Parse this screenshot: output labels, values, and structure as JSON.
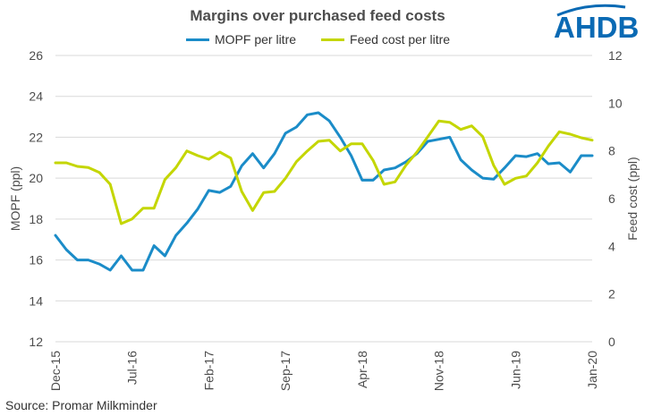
{
  "title": "Margins over purchased feed costs",
  "source": "Source:  Promar Milkminder",
  "logo": {
    "text": "AHDB",
    "color": "#0a6ab4"
  },
  "chart_data": {
    "type": "line",
    "x": [
      "2015-12",
      "2016-01",
      "2016-02",
      "2016-03",
      "2016-04",
      "2016-05",
      "2016-06",
      "2016-07",
      "2016-08",
      "2016-09",
      "2016-10",
      "2016-11",
      "2016-12",
      "2017-01",
      "2017-02",
      "2017-03",
      "2017-04",
      "2017-05",
      "2017-06",
      "2017-07",
      "2017-08",
      "2017-09",
      "2017-10",
      "2017-11",
      "2017-12",
      "2018-01",
      "2018-02",
      "2018-03",
      "2018-04",
      "2018-05",
      "2018-06",
      "2018-07",
      "2018-08",
      "2018-09",
      "2018-10",
      "2018-11",
      "2018-12",
      "2019-01",
      "2019-02",
      "2019-03",
      "2019-04",
      "2019-05",
      "2019-06",
      "2019-07",
      "2019-08",
      "2019-09",
      "2019-10",
      "2019-11",
      "2019-12",
      "2020-01"
    ],
    "x_tick_labels": [
      "Dec-15",
      "Jul-16",
      "Feb-17",
      "Sep-17",
      "Apr-18",
      "Nov-18",
      "Jun-19",
      "Jan-20"
    ],
    "x_tick_index": [
      0,
      7,
      14,
      21,
      28,
      35,
      42,
      49
    ],
    "y_left": {
      "label": "MOPF (ppl)",
      "range": [
        12,
        26
      ],
      "ticks": [
        12,
        14,
        16,
        18,
        20,
        22,
        24,
        26
      ]
    },
    "y_right": {
      "label": "Feed cost (ppl)",
      "range": [
        0,
        12
      ],
      "ticks": [
        0,
        2,
        4,
        6,
        8,
        10,
        12
      ]
    },
    "grid": true,
    "legend": "top",
    "series": [
      {
        "name": "MOPF per litre",
        "axis": "left",
        "color": "#1b8cc8",
        "values": [
          17.2,
          16.5,
          16.0,
          16.0,
          15.8,
          15.5,
          16.2,
          15.5,
          15.5,
          16.7,
          16.2,
          17.2,
          17.8,
          18.5,
          19.4,
          19.3,
          19.6,
          20.6,
          21.2,
          20.5,
          21.2,
          22.2,
          22.5,
          23.1,
          23.2,
          22.8,
          22.0,
          21.1,
          19.9,
          19.9,
          20.4,
          20.5,
          20.8,
          21.2,
          21.8,
          21.9,
          22.0,
          20.9,
          20.4,
          20.0,
          19.95,
          20.5,
          21.1,
          21.05,
          21.2,
          20.7,
          20.75,
          20.3,
          21.1,
          21.1
        ]
      },
      {
        "name": "Feed cost per litre",
        "axis": "right",
        "color": "#c4d600",
        "values": [
          7.5,
          7.5,
          7.35,
          7.3,
          7.1,
          6.6,
          4.95,
          5.15,
          5.6,
          5.6,
          6.8,
          7.3,
          8.0,
          7.8,
          7.65,
          7.95,
          7.7,
          6.3,
          5.5,
          6.25,
          6.3,
          6.85,
          7.55,
          8.0,
          8.4,
          8.45,
          8.0,
          8.3,
          8.3,
          7.6,
          6.6,
          6.7,
          7.4,
          7.95,
          8.6,
          9.25,
          9.2,
          8.9,
          9.05,
          8.6,
          7.4,
          6.6,
          6.85,
          6.95,
          7.5,
          8.2,
          8.8,
          8.7,
          8.55,
          8.45
        ]
      }
    ]
  }
}
